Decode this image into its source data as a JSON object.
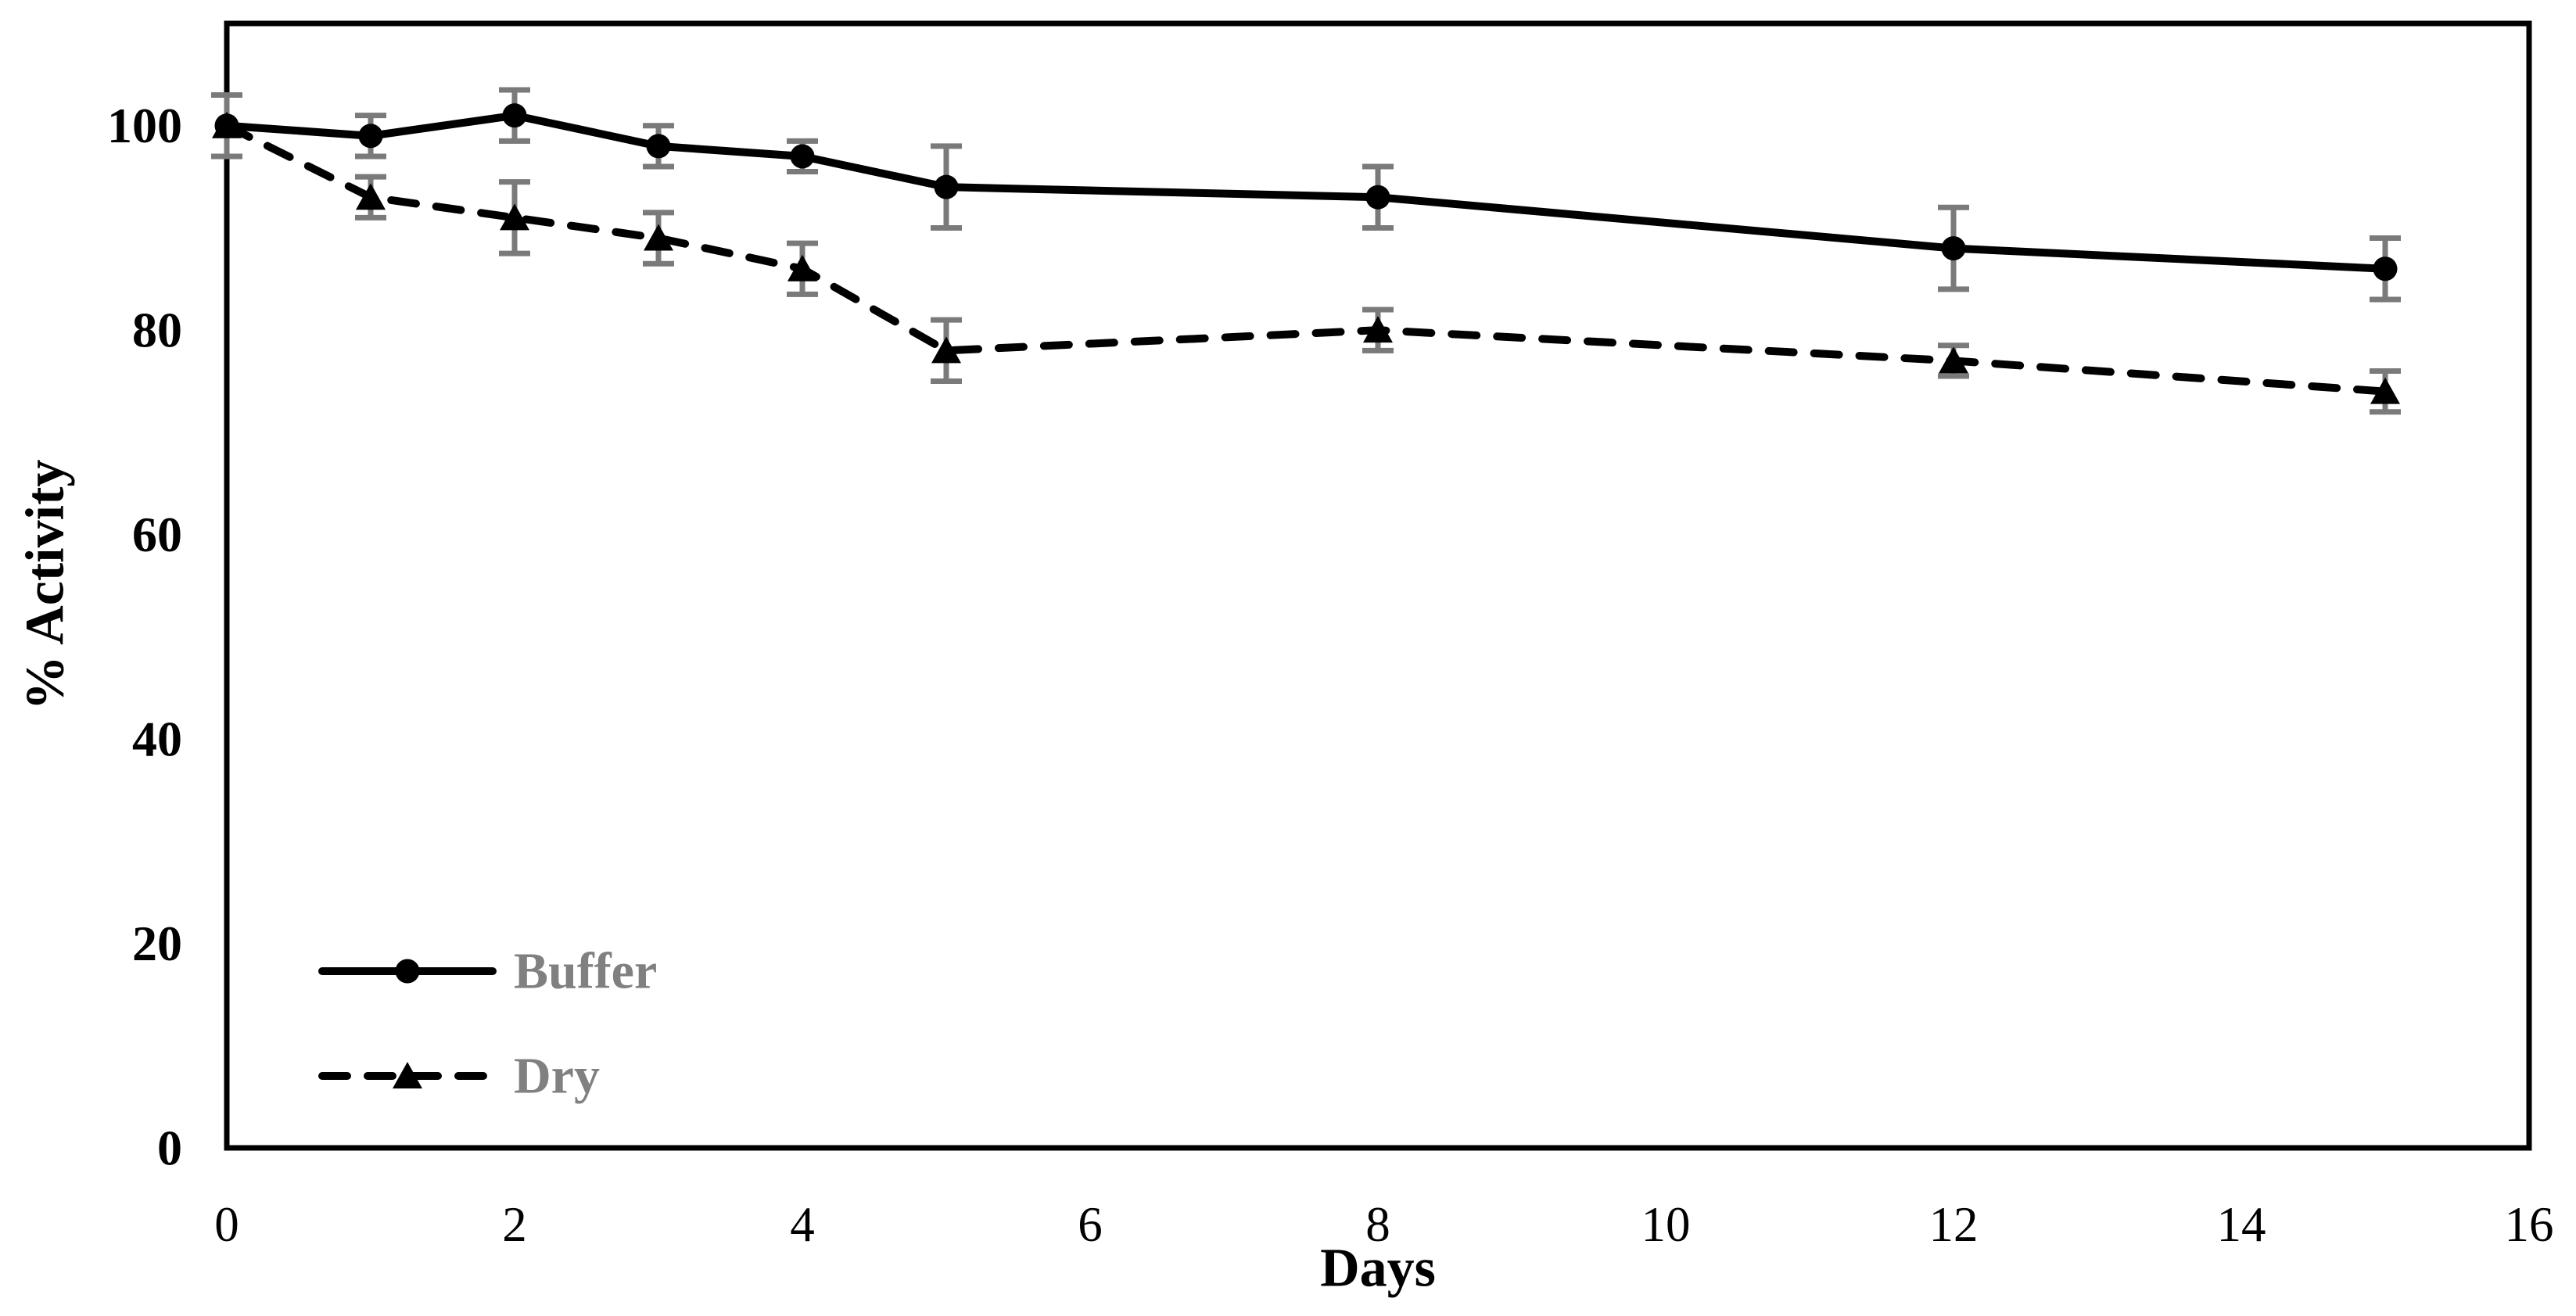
{
  "chart_data": {
    "type": "line",
    "title": "",
    "xlabel": "Days",
    "ylabel": "% Activity",
    "x_ticks": [
      0,
      2,
      4,
      6,
      8,
      10,
      12,
      14,
      16
    ],
    "y_ticks": [
      0,
      20,
      40,
      60,
      80,
      100
    ],
    "xlim": [
      0,
      16
    ],
    "ylim": [
      0,
      110
    ],
    "grid": false,
    "legend_position": "inside-bottom-left",
    "x": [
      0,
      1,
      2,
      3,
      4,
      5,
      8,
      12,
      15
    ],
    "series": [
      {
        "name": "Buffer",
        "marker": "circle",
        "line_style": "solid",
        "values": [
          100,
          99,
          101,
          98,
          97,
          94,
          93,
          88,
          86
        ],
        "errors": [
          3,
          2,
          2.5,
          2,
          1.5,
          4,
          3,
          4,
          3
        ]
      },
      {
        "name": "Dry",
        "marker": "triangle",
        "line_style": "dashed",
        "values": [
          100,
          93,
          91,
          89,
          86,
          78,
          80,
          77,
          74
        ],
        "errors": [
          0,
          2,
          3.5,
          2.5,
          2.5,
          3,
          2,
          1.5,
          2
        ]
      }
    ]
  },
  "colors": {
    "series_line": "#000000",
    "marker_fill": "#000000",
    "error_bar": "#7a7a7a",
    "legend_text": "#808080",
    "axis": "#000000",
    "background": "#ffffff"
  }
}
